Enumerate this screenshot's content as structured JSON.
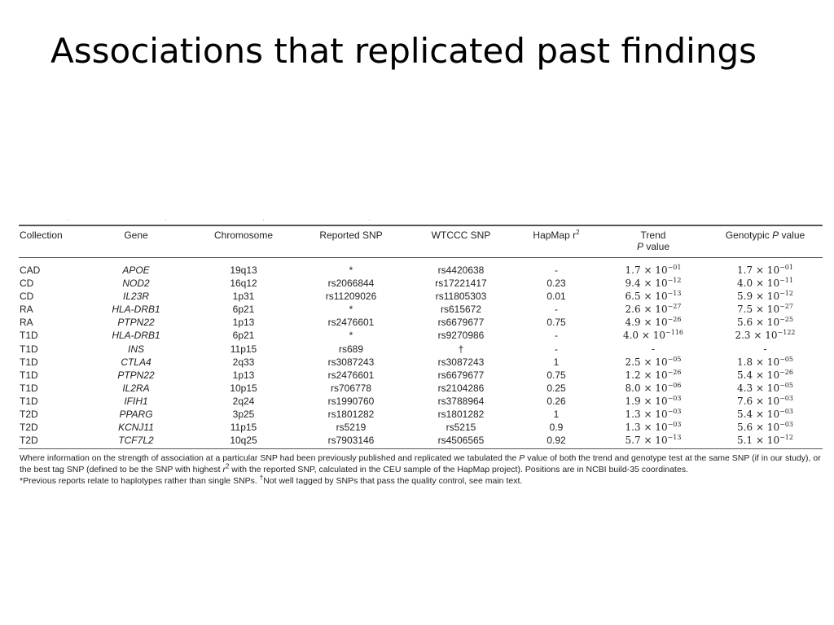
{
  "slide": {
    "title": "Associations that replicated past findings"
  },
  "table": {
    "headers": {
      "collection": "Collection",
      "gene": "Gene",
      "chromosome": "Chromosome",
      "reported_snp": "Reported SNP",
      "wtccc_snp": "WTCCC SNP",
      "hapmap_r2_label": "HapMap r",
      "hapmap_r2_sup": "2",
      "trend_line1": "Trend",
      "trend_p": "P",
      "trend_value": " value",
      "genotypic_label": "Genotypic ",
      "genotypic_p": "P",
      "genotypic_value": " value"
    },
    "rows": [
      {
        "collection": "CAD",
        "gene": "APOE",
        "chromosome": "19q13",
        "reported_snp": "*",
        "wtccc_snp": "rs4420638",
        "hapmap_r2": "-",
        "trend_mantissa": "1.7",
        "trend_exp": "−01",
        "geno_mantissa": "1.7",
        "geno_exp": "−01"
      },
      {
        "collection": "CD",
        "gene": "NOD2",
        "chromosome": "16q12",
        "reported_snp": "rs2066844",
        "wtccc_snp": "rs17221417",
        "hapmap_r2": "0.23",
        "trend_mantissa": "9.4",
        "trend_exp": "−12",
        "geno_mantissa": "4.0",
        "geno_exp": "−11"
      },
      {
        "collection": "CD",
        "gene": "IL23R",
        "chromosome": "1p31",
        "reported_snp": "rs11209026",
        "wtccc_snp": "rs11805303",
        "hapmap_r2": "0.01",
        "trend_mantissa": "6.5",
        "trend_exp": "−13",
        "geno_mantissa": "5.9",
        "geno_exp": "−12"
      },
      {
        "collection": "RA",
        "gene": "HLA-DRB1",
        "chromosome": "6p21",
        "reported_snp": "*",
        "wtccc_snp": "rs615672",
        "hapmap_r2": "-",
        "trend_mantissa": "2.6",
        "trend_exp": "−27",
        "geno_mantissa": "7.5",
        "geno_exp": "−27"
      },
      {
        "collection": "RA",
        "gene": "PTPN22",
        "chromosome": "1p13",
        "reported_snp": "rs2476601",
        "wtccc_snp": "rs6679677",
        "hapmap_r2": "0.75",
        "trend_mantissa": "4.9",
        "trend_exp": "−26",
        "geno_mantissa": "5.6",
        "geno_exp": "−25"
      },
      {
        "collection": "T1D",
        "gene": "HLA-DRB1",
        "chromosome": "6p21",
        "reported_snp": "*",
        "wtccc_snp": "rs9270986",
        "hapmap_r2": "-",
        "trend_mantissa": "4.0",
        "trend_exp": "−116",
        "geno_mantissa": "2.3",
        "geno_exp": "−122"
      },
      {
        "collection": "T1D",
        "gene": "INS",
        "chromosome": "11p15",
        "reported_snp": "rs689",
        "wtccc_snp": "†",
        "hapmap_r2": "-",
        "trend_text": "-",
        "geno_text": "-"
      },
      {
        "collection": "T1D",
        "gene": "CTLA4",
        "chromosome": "2q33",
        "reported_snp": "rs3087243",
        "wtccc_snp": "rs3087243",
        "hapmap_r2": "1",
        "trend_mantissa": "2.5",
        "trend_exp": "−05",
        "geno_mantissa": "1.8",
        "geno_exp": "−05"
      },
      {
        "collection": "T1D",
        "gene": "PTPN22",
        "chromosome": "1p13",
        "reported_snp": "rs2476601",
        "wtccc_snp": "rs6679677",
        "hapmap_r2": "0.75",
        "trend_mantissa": "1.2",
        "trend_exp": "−26",
        "geno_mantissa": "5.4",
        "geno_exp": "−26"
      },
      {
        "collection": "T1D",
        "gene": "IL2RA",
        "chromosome": "10p15",
        "reported_snp": "rs706778",
        "wtccc_snp": "rs2104286",
        "hapmap_r2": "0.25",
        "trend_mantissa": "8.0",
        "trend_exp": "−06",
        "geno_mantissa": "4.3",
        "geno_exp": "−05"
      },
      {
        "collection": "T1D",
        "gene": "IFIH1",
        "chromosome": "2q24",
        "reported_snp": "rs1990760",
        "wtccc_snp": "rs3788964",
        "hapmap_r2": "0.26",
        "trend_mantissa": "1.9",
        "trend_exp": "−03",
        "geno_mantissa": "7.6",
        "geno_exp": "−03"
      },
      {
        "collection": "T2D",
        "gene": "PPARG",
        "chromosome": "3p25",
        "reported_snp": "rs1801282",
        "wtccc_snp": "rs1801282",
        "hapmap_r2": "1",
        "trend_mantissa": "1.3",
        "trend_exp": "−03",
        "geno_mantissa": "5.4",
        "geno_exp": "−03"
      },
      {
        "collection": "T2D",
        "gene": "KCNJ11",
        "chromosome": "11p15",
        "reported_snp": "rs5219",
        "wtccc_snp": "rs5215",
        "hapmap_r2": "0.9",
        "trend_mantissa": "1.3",
        "trend_exp": "−03",
        "geno_mantissa": "5.6",
        "geno_exp": "−03"
      },
      {
        "collection": "T2D",
        "gene": "TCF7L2",
        "chromosome": "10q25",
        "reported_snp": "rs7903146",
        "wtccc_snp": "rs4506565",
        "hapmap_r2": "0.92",
        "trend_mantissa": "5.7",
        "trend_exp": "−13",
        "geno_mantissa": "5.1",
        "geno_exp": "−12"
      }
    ],
    "times_ten": "× 10",
    "footnote": {
      "part1": "Where information on the strength of association at a particular SNP had been previously published and replicated we tabulated the ",
      "p_italic": "P",
      "part2": " value of both the trend and genotype test at the same SNP (if in our study), or the best tag SNP (defined to be the SNP with highest ",
      "r_italic": "r",
      "r_sup": "2",
      "part3": " with the reported SNP, calculated in the CEU sample of the HapMap project). Positions are in NCBI build-35 coordinates.",
      "line2_a": "*Previous reports relate to haplotypes rather than single SNPs. ",
      "dagger": "†",
      "line2_b": "Not well tagged by SNPs that pass the quality control, see main text."
    }
  }
}
